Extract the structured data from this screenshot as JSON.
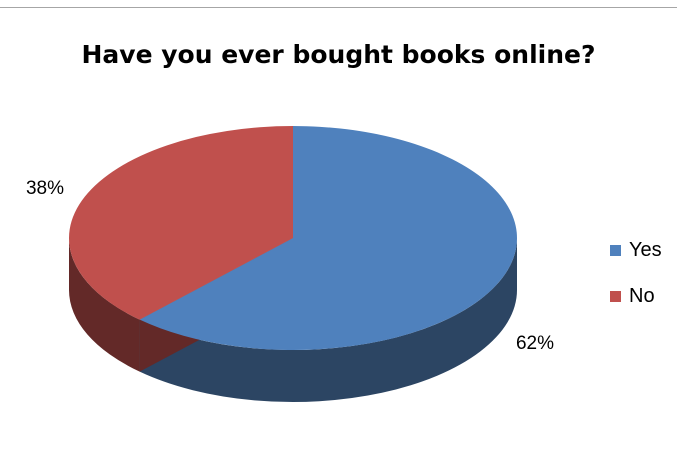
{
  "chart_data": {
    "type": "pie",
    "title": "Have you ever bought books online?",
    "categories": [
      "Yes",
      "No"
    ],
    "values": [
      62,
      38
    ],
    "data_labels": [
      "62%",
      "38%"
    ],
    "legend": {
      "position": "right",
      "entries": [
        "Yes",
        "No"
      ]
    },
    "style": "3d",
    "colors": {
      "Yes": {
        "top": "#4f81bd",
        "side": "#2c4563"
      },
      "No": {
        "top": "#c0504d",
        "side": "#632928"
      }
    }
  }
}
